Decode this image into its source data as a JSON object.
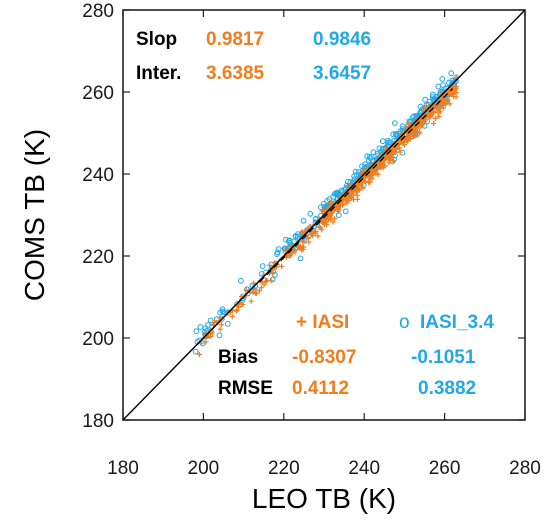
{
  "chart_data": {
    "type": "scatter",
    "xlabel": "LEO TB (K)",
    "ylabel": "COMS TB (K)",
    "xlim": [
      180,
      280
    ],
    "ylim": [
      180,
      280
    ],
    "xticks": [
      "180",
      "200",
      "220",
      "240",
      "260",
      "280"
    ],
    "yticks": [
      "180",
      "200",
      "220",
      "240",
      "260",
      "280"
    ],
    "grid": false,
    "reference_lines": [
      "1:1 line",
      "regression line (dashed)"
    ],
    "colors": {
      "IASI": "#F07D1E",
      "IASI_3_4": "#22A8E6",
      "text": "#000000"
    },
    "series": [
      {
        "name": "IASI",
        "marker": "+",
        "slope": 0.9817,
        "intercept": 3.6385,
        "x_range": [
          198,
          264
        ]
      },
      {
        "name": "IASI_3.4",
        "marker": "o",
        "slope": 0.9846,
        "intercept": 3.6457,
        "x_range": [
          198,
          264
        ]
      }
    ],
    "stats_top": {
      "row1": {
        "label": "Slop",
        "v1": "0.9817",
        "v2": "0.9846"
      },
      "row2": {
        "label": "Inter.",
        "v1": "3.6385",
        "v2": "3.6457"
      }
    },
    "legend": {
      "item1": "+ IASI",
      "item2_symbol": "o",
      "item2_label": "IASI_3.4"
    },
    "stats_bottom": {
      "row1": {
        "label": "Bias",
        "v1": "-0.8307",
        "v2": "-0.1051"
      },
      "row2": {
        "label": "RMSE",
        "v1": "0.4112",
        "v2": "0.3882"
      }
    }
  }
}
